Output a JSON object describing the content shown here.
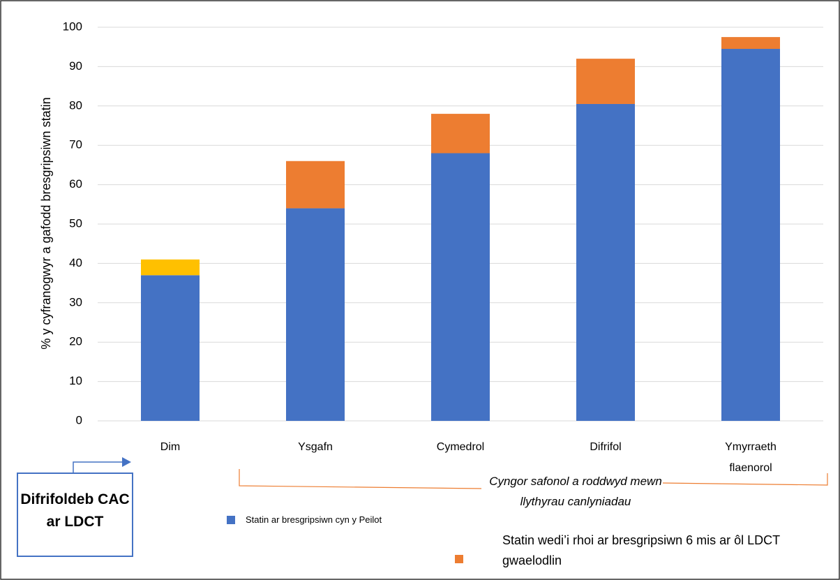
{
  "chart_data": {
    "type": "stacked_bar",
    "y_label": "% y cyfranogwyr a gafodd bresgripsiwn statin",
    "categories": [
      "Dim",
      "Ysgafn",
      "Cymedrol",
      "Difrifol",
      "Ymyrraeth flaenorol"
    ],
    "series": [
      {
        "name": "Statin ar bresgripsiwn cyn y Peilot",
        "color": "#4472c4",
        "values": [
          37,
          54,
          68,
          80.5,
          94.5
        ]
      },
      {
        "name": "Statin wedi’i rhoi ar bresgripsiwn 6 mis ar ôl LDCT gwaelodlin",
        "color": "#ed7d31",
        "point_colors": [
          "#ffc000",
          "#ed7d31",
          "#ed7d31",
          "#ed7d31",
          "#ed7d31"
        ],
        "values": [
          4,
          12,
          10,
          11.5,
          3
        ]
      }
    ],
    "ylim": [
      0,
      100
    ],
    "yticks": [
      0,
      10,
      20,
      30,
      40,
      50,
      60,
      70,
      80,
      90,
      100
    ],
    "grid": true,
    "annotations": {
      "severity_box": "Difrifoldeb CAC ar LDCT",
      "bracket": "Cyngor safonol a roddwyd mewn llythyrau canlyniadau"
    }
  }
}
